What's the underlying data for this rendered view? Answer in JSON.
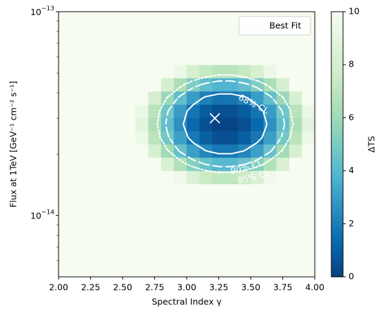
{
  "chart_data": {
    "type": "heatmap",
    "xlabel": "Spectral Index γ",
    "ylabel": "Flux at 1TeV [GeV⁻¹ cm⁻² s⁻¹]",
    "xlim": [
      2.0,
      4.0
    ],
    "ylim": [
      5e-15,
      1e-13
    ],
    "yscale": "log",
    "xticks": [
      {
        "value": 2.0,
        "label": "2.00"
      },
      {
        "value": 2.25,
        "label": "2.25"
      },
      {
        "value": 2.5,
        "label": "2.50"
      },
      {
        "value": 2.75,
        "label": "2.75"
      },
      {
        "value": 3.0,
        "label": "3.00"
      },
      {
        "value": 3.25,
        "label": "3.25"
      },
      {
        "value": 3.5,
        "label": "3.50"
      },
      {
        "value": 3.75,
        "label": "3.75"
      },
      {
        "value": 4.0,
        "label": "4.00"
      }
    ],
    "yticks": [
      {
        "value": 1e-14,
        "label": "10^−14"
      },
      {
        "value": 1e-13,
        "label": "10^−13"
      }
    ],
    "yminorticks": [
      6e-15,
      7e-15,
      8e-15,
      9e-15,
      2e-14,
      3e-14,
      4e-14,
      5e-14,
      6e-14,
      7e-14,
      8e-14,
      9e-14
    ],
    "xbins": [
      2.0,
      2.1,
      2.2,
      2.3,
      2.4,
      2.5,
      2.6,
      2.7,
      2.8,
      2.9,
      3.0,
      3.1,
      3.2,
      3.3,
      3.4,
      3.5,
      3.6,
      3.7,
      3.8,
      3.9,
      4.0
    ],
    "ybins": [
      5e-15,
      5.821e-15,
      6.761e-15,
      7.852e-15,
      9.12e-15,
      1.059e-14,
      1.23e-14,
      1.429e-14,
      1.66e-14,
      1.928e-14,
      2.239e-14,
      2.6e-14,
      3.02e-14,
      3.508e-14,
      4.074e-14,
      4.732e-14,
      5.495e-14,
      6.383e-14,
      7.413e-14,
      8.61e-14,
      1e-13
    ],
    "z": [
      [
        10,
        10,
        10,
        10,
        10,
        10,
        10,
        10,
        10,
        10,
        10,
        10,
        10,
        10,
        10,
        10,
        10,
        10,
        10,
        10
      ],
      [
        10,
        10,
        10,
        10,
        10,
        10,
        10,
        10,
        10,
        10,
        10,
        10,
        10,
        10,
        10,
        10,
        10,
        10,
        10,
        10
      ],
      [
        10,
        10,
        10,
        10,
        10,
        10,
        10,
        10,
        10,
        10,
        10,
        10,
        10,
        10,
        10,
        10,
        10,
        10,
        10,
        10
      ],
      [
        10,
        10,
        10,
        10,
        10,
        10,
        10,
        10,
        10,
        10,
        10,
        10,
        10,
        10,
        10,
        10,
        10,
        10,
        10,
        10
      ],
      [
        10,
        10,
        10,
        10,
        10,
        10,
        10,
        10,
        10,
        10,
        10,
        10,
        10,
        10,
        10,
        10,
        10,
        10,
        10,
        10
      ],
      [
        10,
        10,
        10,
        10,
        10,
        10,
        10,
        10,
        10,
        10,
        10,
        10,
        10,
        10,
        10,
        10,
        10,
        10,
        10,
        10
      ],
      [
        10,
        10,
        10,
        10,
        10,
        10,
        10,
        10,
        10,
        10,
        10,
        10,
        10,
        10,
        10,
        10,
        10,
        10,
        10,
        10
      ],
      [
        10,
        10,
        10,
        10,
        10,
        10,
        10,
        10,
        10,
        9.6,
        8.4,
        7.5,
        7.1,
        7.1,
        7.5,
        8.4,
        9.6,
        10,
        10,
        10
      ],
      [
        10,
        10,
        10,
        10,
        10,
        10,
        10,
        10,
        8.3,
        6.6,
        5.3,
        4.5,
        4.0,
        4.0,
        4.5,
        5.3,
        6.6,
        8.3,
        10,
        10
      ],
      [
        10,
        10,
        10,
        10,
        10,
        10,
        10,
        8.2,
        6.1,
        4.4,
        3.1,
        2.3,
        1.8,
        1.8,
        2.3,
        3.1,
        4.4,
        6.1,
        8.2,
        10
      ],
      [
        10,
        10,
        10,
        10,
        10,
        10,
        9.4,
        6.9,
        4.8,
        3.1,
        1.8,
        1.0,
        0.5,
        0.5,
        1.0,
        1.8,
        3.1,
        4.8,
        6.9,
        9.4
      ],
      [
        10,
        10,
        10,
        10,
        10,
        10,
        8.9,
        6.4,
        4.3,
        2.6,
        1.3,
        0.5,
        0.1,
        0.1,
        0.5,
        1.3,
        2.6,
        4.3,
        6.4,
        8.9
      ],
      [
        10,
        10,
        10,
        10,
        10,
        10,
        9.3,
        6.8,
        4.7,
        3.0,
        1.7,
        0.9,
        0.5,
        0.5,
        0.9,
        1.7,
        3.0,
        4.7,
        6.8,
        9.3
      ],
      [
        10,
        10,
        10,
        10,
        10,
        10,
        10,
        8.1,
        5.9,
        4.3,
        3.0,
        2.1,
        1.7,
        1.7,
        2.1,
        3.0,
        4.3,
        5.9,
        8.1,
        10
      ],
      [
        10,
        10,
        10,
        10,
        10,
        10,
        10,
        10,
        8.1,
        6.4,
        5.1,
        4.3,
        3.8,
        3.8,
        4.3,
        5.1,
        6.4,
        8.1,
        10,
        10
      ],
      [
        10,
        10,
        10,
        10,
        10,
        10,
        10,
        10,
        10,
        9.4,
        8.1,
        7.3,
        6.8,
        6.8,
        7.3,
        8.1,
        9.4,
        10,
        10,
        10
      ],
      [
        10,
        10,
        10,
        10,
        10,
        10,
        10,
        10,
        10,
        10,
        10,
        10,
        10,
        10,
        10,
        10,
        10,
        10,
        10,
        10
      ],
      [
        10,
        10,
        10,
        10,
        10,
        10,
        10,
        10,
        10,
        10,
        10,
        10,
        10,
        10,
        10,
        10,
        10,
        10,
        10,
        10
      ],
      [
        10,
        10,
        10,
        10,
        10,
        10,
        10,
        10,
        10,
        10,
        10,
        10,
        10,
        10,
        10,
        10,
        10,
        10,
        10,
        10
      ],
      [
        10,
        10,
        10,
        10,
        10,
        10,
        10,
        10,
        10,
        10,
        10,
        10,
        10,
        10,
        10,
        10,
        10,
        10,
        10,
        10
      ]
    ],
    "colormap": [
      "#084081",
      "#0868ac",
      "#2b8cbe",
      "#4eb3d3",
      "#7bccc4",
      "#a8ddb5",
      "#ccebc5",
      "#e0f3db",
      "#f7fcf0"
    ],
    "clim": [
      0,
      10
    ],
    "cticks": [
      0,
      2,
      4,
      6,
      8,
      10
    ],
    "clabel": "ΔTS",
    "contours": [
      {
        "label": "68% CL",
        "level": 2.3,
        "style": "solid"
      },
      {
        "label": "90% CL",
        "level": 4.61,
        "style": "dashed"
      },
      {
        "label": "95% CL",
        "level": 5.99,
        "style": "dotted"
      }
    ],
    "best_fit": {
      "label": "Best Fit",
      "x": 3.22,
      "y": 3e-14
    },
    "legend": "upper right"
  }
}
